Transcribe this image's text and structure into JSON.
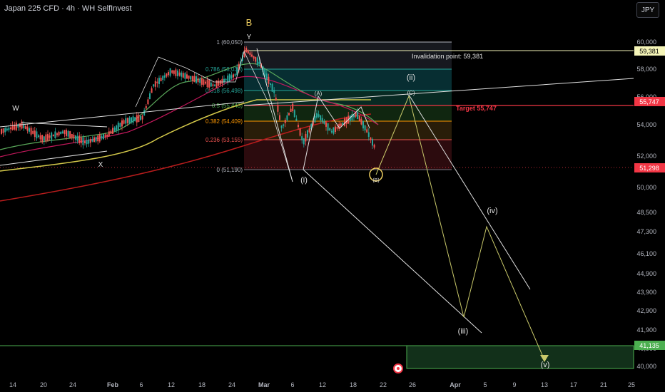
{
  "header": {
    "title": "Japan 225 CFD · 4h · WH SelfInvest",
    "currency_button": "JPY"
  },
  "chart_data": {
    "type": "candlestick",
    "y_ticks": [
      "60,000",
      "58,000",
      "56,000",
      "54,000",
      "52,000",
      "50,000",
      "48,500",
      "47,300",
      "46,100",
      "44,900",
      "43,900",
      "42,900",
      "41,900",
      "40,900",
      "40,000"
    ],
    "x_ticks": [
      "14",
      "20",
      "24",
      "Feb",
      "6",
      "12",
      "18",
      "24",
      "Mar",
      "6",
      "12",
      "18",
      "22",
      "26",
      "Apr",
      "5",
      "9",
      "13",
      "17",
      "21",
      "25"
    ],
    "price_labels": {
      "invalidation": "59,381",
      "target": "55,747",
      "current": "51,298",
      "zone": "41,135"
    },
    "fib_levels": [
      {
        "ratio": "1",
        "price": "60,050",
        "label": "1 (60,050)",
        "color": "#b2b5be"
      },
      {
        "ratio": "0.786",
        "price": "58,033",
        "label": "0.786 (58,033)",
        "color": "#26a69a"
      },
      {
        "ratio": "0.618",
        "price": "56,498",
        "label": "0.618 (56,498)",
        "color": "#26a69a"
      },
      {
        "ratio": "0.5",
        "price": "55,443",
        "label": "0.5 (55,443)",
        "color": "#4caf50"
      },
      {
        "ratio": "0.382",
        "price": "54,409",
        "label": "0.382 (54,409)",
        "color": "#ff9800"
      },
      {
        "ratio": "0.236",
        "price": "53,155",
        "label": "0.236 (53,155)",
        "color": "#ef5350"
      },
      {
        "ratio": "0",
        "price": "51,190",
        "label": "0 (51,190)",
        "color": "#787b86"
      }
    ],
    "annotations": {
      "invalidation": "Invalidation point: 59,381",
      "target": "Target 55,747",
      "wave_labels": [
        "W",
        "X",
        "Y",
        "B",
        "(i)",
        "(ii)",
        "(iii)",
        "(iv)",
        "(v)",
        "(A)",
        "(B)",
        "(C)"
      ]
    },
    "colors": {
      "bull": "#26a69a",
      "bear": "#ef5350",
      "target": "#f23645",
      "invalidation": "#f5f5b8",
      "projection": "#c9c96a",
      "channel": "#e0e0e0",
      "zone": "#4caf50",
      "wave_b": "#f0d060"
    }
  }
}
